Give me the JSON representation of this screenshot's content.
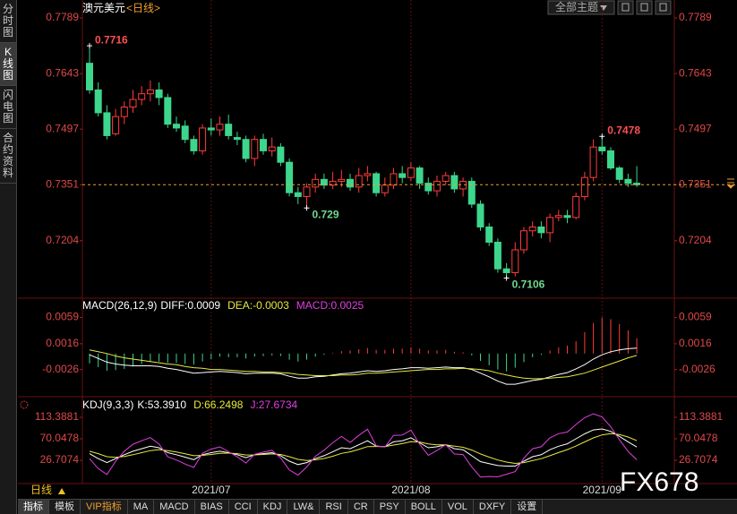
{
  "ui": {
    "side_tabs": [
      "分时图",
      "K线图",
      "闪电图",
      "合约资料"
    ],
    "symbol": "澳元美元",
    "period": "<日线>",
    "theme_button": "全部主题",
    "period_button": "日线",
    "bottom_tabs": [
      "指标",
      "模板",
      "VIP指标",
      "MA",
      "MACD",
      "BIAS",
      "CCI",
      "KDJ",
      "LW&",
      "RSI",
      "CR",
      "PSY",
      "BOLL",
      "VOL",
      "DXFY",
      "设置"
    ],
    "watermark": "FX678"
  },
  "chart_data": [
    {
      "type": "candlestick",
      "up_color": "#ff3b3b",
      "down_color": "#3dd68c",
      "open": [
        0.767,
        0.76,
        0.754,
        0.7485,
        0.753,
        0.7555,
        0.7575,
        0.759,
        0.76,
        0.758,
        0.751,
        0.7505,
        0.747,
        0.744,
        0.75,
        0.7495,
        0.751,
        0.7475,
        0.747,
        0.742,
        0.747,
        0.744,
        0.745,
        0.741,
        0.733,
        0.732,
        0.7345,
        0.7365,
        0.735,
        0.736,
        0.7365,
        0.7345,
        0.7375,
        0.738,
        0.733,
        0.735,
        0.738,
        0.737,
        0.7395,
        0.7355,
        0.7335,
        0.736,
        0.7375,
        0.734,
        0.736,
        0.73,
        0.724,
        0.72,
        0.713,
        0.712,
        0.718,
        0.723,
        0.724,
        0.7225,
        0.7265,
        0.727,
        0.7265,
        0.732,
        0.737,
        0.745,
        0.744,
        0.7395,
        0.7365,
        0.7355
      ],
      "high": [
        0.7716,
        0.762,
        0.756,
        0.755,
        0.757,
        0.76,
        0.761,
        0.7625,
        0.762,
        0.759,
        0.753,
        0.752,
        0.748,
        0.751,
        0.7525,
        0.753,
        0.7535,
        0.749,
        0.748,
        0.748,
        0.7485,
        0.7475,
        0.746,
        0.742,
        0.7345,
        0.7355,
        0.738,
        0.738,
        0.7385,
        0.739,
        0.738,
        0.7395,
        0.74,
        0.7385,
        0.737,
        0.7395,
        0.74,
        0.741,
        0.74,
        0.737,
        0.7375,
        0.7385,
        0.7385,
        0.737,
        0.737,
        0.731,
        0.725,
        0.721,
        0.7145,
        0.72,
        0.724,
        0.7255,
        0.7255,
        0.7275,
        0.7285,
        0.7285,
        0.733,
        0.7385,
        0.747,
        0.7478,
        0.745,
        0.74,
        0.738,
        0.74
      ],
      "low": [
        0.759,
        0.753,
        0.747,
        0.748,
        0.751,
        0.754,
        0.756,
        0.757,
        0.756,
        0.75,
        0.749,
        0.746,
        0.743,
        0.743,
        0.748,
        0.748,
        0.747,
        0.7455,
        0.741,
        0.74,
        0.743,
        0.7425,
        0.74,
        0.732,
        0.73,
        0.729,
        0.733,
        0.734,
        0.734,
        0.7345,
        0.7335,
        0.733,
        0.736,
        0.732,
        0.732,
        0.734,
        0.7355,
        0.736,
        0.734,
        0.7325,
        0.732,
        0.735,
        0.733,
        0.732,
        0.729,
        0.723,
        0.719,
        0.712,
        0.7106,
        0.711,
        0.717,
        0.7215,
        0.721,
        0.72,
        0.7255,
        0.725,
        0.726,
        0.731,
        0.736,
        0.743,
        0.739,
        0.7355,
        0.7345,
        0.7345
      ],
      "close": [
        0.76,
        0.754,
        0.748,
        0.753,
        0.7555,
        0.7575,
        0.759,
        0.76,
        0.758,
        0.751,
        0.75,
        0.747,
        0.744,
        0.75,
        0.7495,
        0.751,
        0.748,
        0.747,
        0.742,
        0.747,
        0.744,
        0.745,
        0.741,
        0.733,
        0.732,
        0.7345,
        0.7365,
        0.735,
        0.736,
        0.7365,
        0.7345,
        0.7375,
        0.738,
        0.733,
        0.735,
        0.738,
        0.737,
        0.7395,
        0.7355,
        0.7335,
        0.736,
        0.7375,
        0.734,
        0.736,
        0.73,
        0.724,
        0.72,
        0.713,
        0.712,
        0.718,
        0.723,
        0.724,
        0.7225,
        0.7265,
        0.727,
        0.7265,
        0.732,
        0.737,
        0.745,
        0.744,
        0.7395,
        0.7365,
        0.7355,
        0.7351
      ],
      "ylim": [
        0.706,
        0.7808
      ],
      "yticks": [
        0.7789,
        0.7643,
        0.7497,
        0.7351,
        0.7204
      ],
      "xticks": [
        {
          "value": 14,
          "label": "2021/07"
        },
        {
          "value": 37,
          "label": "2021/08"
        },
        {
          "value": 59,
          "label": "2021/09"
        }
      ],
      "annotations": [
        {
          "index": 0,
          "value": 0.7716
        },
        {
          "index": 25,
          "value": 0.729
        },
        {
          "index": 59,
          "value": 0.7478
        },
        {
          "index": 48,
          "value": 0.7106
        }
      ]
    },
    {
      "type": "macd",
      "title": "MACD(26,12,9)",
      "ylim": [
        -0.0066,
        0.0086
      ],
      "yticks": [
        0.0059,
        0.0016,
        -0.0026
      ],
      "series": [
        {
          "name": "DIFF:0.0009",
          "color": "#ffffff",
          "values": [
            -0.0002,
            -0.0008,
            -0.0014,
            -0.0017,
            -0.0019,
            -0.002,
            -0.002,
            -0.002,
            -0.0021,
            -0.0024,
            -0.0026,
            -0.0029,
            -0.0032,
            -0.0031,
            -0.003,
            -0.0029,
            -0.003,
            -0.0031,
            -0.0033,
            -0.0032,
            -0.0032,
            -0.0032,
            -0.0033,
            -0.0037,
            -0.004,
            -0.004,
            -0.0038,
            -0.0037,
            -0.0035,
            -0.0033,
            -0.0032,
            -0.003,
            -0.0028,
            -0.0029,
            -0.0028,
            -0.0026,
            -0.0025,
            -0.0023,
            -0.0023,
            -0.0024,
            -0.0023,
            -0.0022,
            -0.0023,
            -0.0023,
            -0.0026,
            -0.0032,
            -0.0038,
            -0.0045,
            -0.005,
            -0.005,
            -0.0047,
            -0.0044,
            -0.0042,
            -0.0038,
            -0.0034,
            -0.0031,
            -0.0025,
            -0.0018,
            -0.0009,
            -0.0002,
            0.0003,
            0.0006,
            0.0008,
            0.0009
          ]
        },
        {
          "name": "DEA:-0.0003",
          "color": "#e8e840",
          "values": [
            0.0006,
            0.0003,
            0.0,
            -0.0004,
            -0.0007,
            -0.0009,
            -0.0011,
            -0.0013,
            -0.0015,
            -0.0017,
            -0.0018,
            -0.0021,
            -0.0023,
            -0.0024,
            -0.0026,
            -0.0026,
            -0.0027,
            -0.0028,
            -0.0029,
            -0.0029,
            -0.003,
            -0.003,
            -0.0031,
            -0.0032,
            -0.0034,
            -0.0035,
            -0.0036,
            -0.0036,
            -0.0036,
            -0.0035,
            -0.0035,
            -0.0034,
            -0.0032,
            -0.0032,
            -0.0031,
            -0.003,
            -0.0029,
            -0.0028,
            -0.0027,
            -0.0026,
            -0.0026,
            -0.0025,
            -0.0025,
            -0.0024,
            -0.0025,
            -0.0026,
            -0.0028,
            -0.0032,
            -0.0035,
            -0.0038,
            -0.004,
            -0.0041,
            -0.0041,
            -0.004,
            -0.0039,
            -0.0038,
            -0.0035,
            -0.0032,
            -0.0027,
            -0.0022,
            -0.0017,
            -0.0012,
            -0.0007,
            -0.0003
          ]
        }
      ],
      "histogram": {
        "name": "MACD:0.0025",
        "color": "#e040e0",
        "up_color": "#ff3b3b",
        "down_color": "#3dd68c",
        "values": [
          -0.0016,
          -0.0022,
          -0.0028,
          -0.0027,
          -0.0025,
          -0.0021,
          -0.0017,
          -0.0014,
          -0.0013,
          -0.0015,
          -0.0015,
          -0.0017,
          -0.0018,
          -0.0013,
          -0.0009,
          -0.0005,
          -0.0006,
          -0.0006,
          -0.0008,
          -0.0005,
          -0.0004,
          -0.0003,
          -0.0004,
          -0.001,
          -0.0013,
          -0.001,
          -0.0005,
          -0.0002,
          0.0001,
          0.0004,
          0.0005,
          0.0007,
          0.0009,
          0.0006,
          0.0006,
          0.0008,
          0.0008,
          0.001,
          0.0008,
          0.0005,
          0.0005,
          0.0006,
          0.0003,
          0.0002,
          -0.0003,
          -0.0012,
          -0.0019,
          -0.0026,
          -0.0029,
          -0.0023,
          -0.0014,
          -0.0006,
          -0.0002,
          0.0005,
          0.001,
          0.0013,
          0.002,
          0.0035,
          0.005,
          0.0059,
          0.0056,
          0.0048,
          0.0038,
          0.0025
        ]
      }
    },
    {
      "type": "line",
      "title": "KDJ(9,3,3)",
      "ylim": [
        -16.6,
        151.3
      ],
      "yticks": [
        113.3881,
        70.0478,
        26.7074
      ],
      "series": [
        {
          "name": "K:53.3910",
          "color": "#ffffff",
          "values": [
            40,
            30,
            22,
            30,
            38,
            45,
            50,
            55,
            52,
            42,
            38,
            33,
            28,
            38,
            42,
            45,
            42,
            38,
            32,
            38,
            40,
            42,
            36,
            25,
            18,
            22,
            30,
            36,
            44,
            52,
            50,
            58,
            66,
            55,
            54,
            64,
            66,
            72,
            62,
            52,
            54,
            58,
            50,
            48,
            36,
            24,
            20,
            16,
            15,
            15,
            25,
            34,
            38,
            48,
            55,
            60,
            70,
            80,
            88,
            90,
            85,
            75,
            64,
            53.391
          ]
        },
        {
          "name": "D:66.2498",
          "color": "#e8e840",
          "values": [
            45,
            40,
            34,
            32.7,
            34.5,
            38,
            42,
            46.3,
            48.2,
            46.1,
            43.4,
            39.9,
            35.9,
            36.6,
            38.4,
            40.6,
            41.1,
            40.1,
            37.4,
            37.6,
            38.4,
            39.6,
            38.4,
            33.9,
            28.6,
            26.4,
            27.6,
            30.4,
            34.9,
            40.6,
            43.7,
            48.5,
            54.3,
            54.5,
            54.3,
            57.5,
            60.3,
            64.2,
            63.5,
            59.7,
            57.8,
            57.9,
            55.3,
            52.9,
            47.3,
            39.5,
            33,
            27.3,
            23.2,
            20.5,
            22,
            26,
            30,
            36,
            42.3,
            48.2,
            55.5,
            63.7,
            71.8,
            77.9,
            80.3,
            78.5,
            73.7,
            66.2498
          ]
        },
        {
          "name": "J:27.6734",
          "color": "#e040e0",
          "values": [
            30,
            10,
            -2,
            24.6,
            45,
            59,
            66,
            72.4,
            59.6,
            33.8,
            27.2,
            19.2,
            12.2,
            40.8,
            49.2,
            53.8,
            43.8,
            33.8,
            21.2,
            38.8,
            43.2,
            46.8,
            31.2,
            7.2,
            -3.2,
            13.2,
            34.8,
            47.2,
            62.2,
            74.8,
            62.6,
            77,
            89.4,
            56,
            53.4,
            77,
            77.4,
            87.6,
            59,
            36.6,
            46.4,
            58.2,
            39.4,
            38.2,
            13.4,
            -7,
            -6,
            -6.6,
            -1.4,
            4,
            31,
            50,
            54,
            72,
            80.4,
            83.6,
            99,
            112.6,
            120.4,
            114.2,
            94.4,
            68,
            44.6,
            27.6734
          ]
        }
      ]
    }
  ]
}
